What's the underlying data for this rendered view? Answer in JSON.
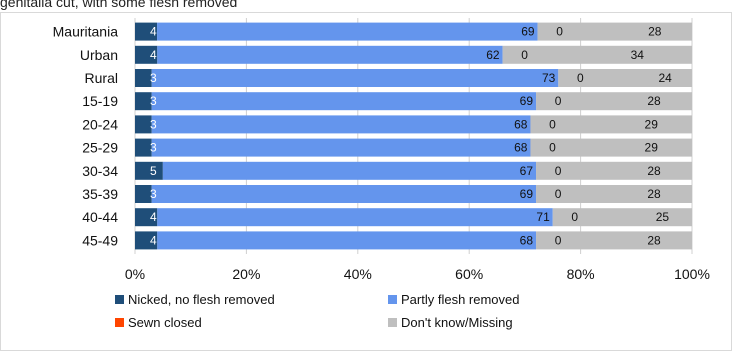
{
  "header": {
    "caption": "genitalia cut, with some flesh removed"
  },
  "chart_data": {
    "type": "bar",
    "orientation": "horizontal",
    "stacked": "percent",
    "categories": [
      "Mauritania",
      "Urban",
      "Rural",
      "15-19",
      "20-24",
      "25-29",
      "30-34",
      "35-39",
      "40-44",
      "45-49"
    ],
    "series": [
      {
        "name": "Nicked, no flesh removed",
        "color": "#1f4e79",
        "values": [
          4,
          4,
          3,
          3,
          3,
          3,
          5,
          3,
          4,
          4
        ]
      },
      {
        "name": "Partly flesh removed",
        "color": "#6495ed",
        "values": [
          69,
          62,
          73,
          69,
          68,
          68,
          67,
          69,
          71,
          68
        ]
      },
      {
        "name": "Sewn closed",
        "color": "#ff4500",
        "values": [
          0,
          0,
          0,
          0,
          0,
          0,
          0,
          0,
          0,
          0
        ]
      },
      {
        "name": "Don't know/Missing",
        "color": "#bfbfbf",
        "values": [
          28,
          34,
          24,
          28,
          29,
          29,
          28,
          28,
          25,
          28
        ]
      }
    ],
    "xlim": [
      0,
      100
    ],
    "x_ticks": [
      "0%",
      "20%",
      "40%",
      "60%",
      "80%",
      "100%"
    ],
    "grid": true,
    "legend_position": "bottom"
  }
}
